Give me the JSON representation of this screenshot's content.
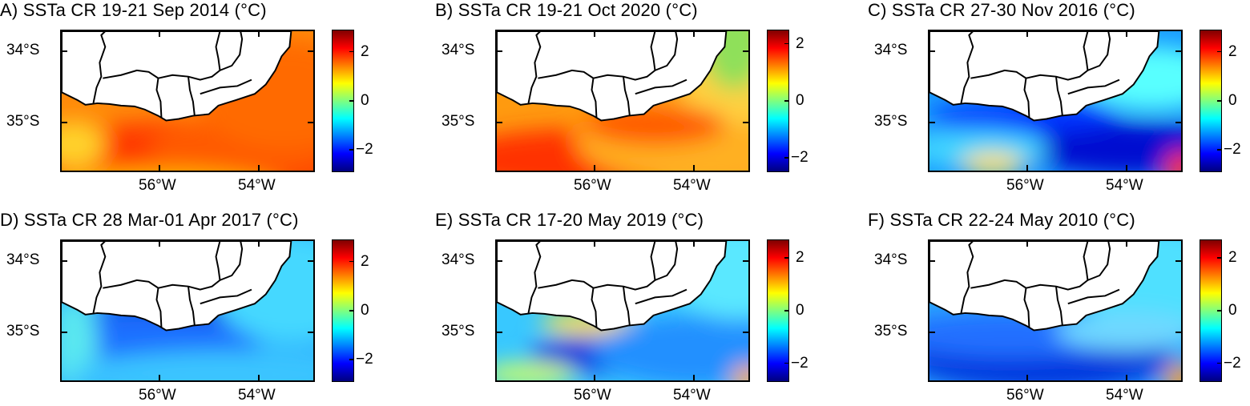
{
  "panels": [
    {
      "title": "A) SSTa CR 19-21 Sep 2014 (°C)",
      "cbar_ticks": [
        "2",
        "0",
        "-2"
      ],
      "cbar_range": [
        -2.9,
        2.9
      ],
      "theme": "warm"
    },
    {
      "title": "B) SSTa CR 19-21 Oct 2020 (°C)",
      "cbar_ticks": [
        "2",
        "0",
        "-2"
      ],
      "cbar_range": [
        -2.5,
        2.5
      ],
      "theme": "warm2"
    },
    {
      "title": "C) SSTa CR 27-30 Nov 2016 (°C)",
      "cbar_ticks": [
        "2",
        "0",
        "-2"
      ],
      "cbar_range": [
        -2.9,
        2.9
      ],
      "theme": "cold_deep"
    },
    {
      "title": "D) SSTa CR 28 Mar-01 Apr 2017 (°C)",
      "cbar_ticks": [
        "2",
        "0",
        "-2"
      ],
      "cbar_range": [
        -2.9,
        2.9
      ],
      "theme": "cold_coast"
    },
    {
      "title": "E) SSTa CR 17-20 May 2019 (°C)",
      "cbar_ticks": [
        "2",
        "0",
        "-2"
      ],
      "cbar_range": [
        -2.7,
        2.7
      ],
      "theme": "cool"
    },
    {
      "title": "F) SSTa CR 22-24 May 2010 (°C)",
      "cbar_ticks": [
        "2",
        "0",
        "-2"
      ],
      "cbar_range": [
        -2.7,
        2.7
      ],
      "theme": "cool2"
    }
  ],
  "lat_labels": [
    "34°S",
    "35°S"
  ],
  "lon_labels": [
    "56°W",
    "54°W"
  ],
  "colormap": [
    "#00007f",
    "#0000ff",
    "#007fff",
    "#00ffff",
    "#7fff7f",
    "#ffff00",
    "#ff7f00",
    "#ff0000",
    "#7f0000"
  ],
  "land_color": "#ffffff"
}
